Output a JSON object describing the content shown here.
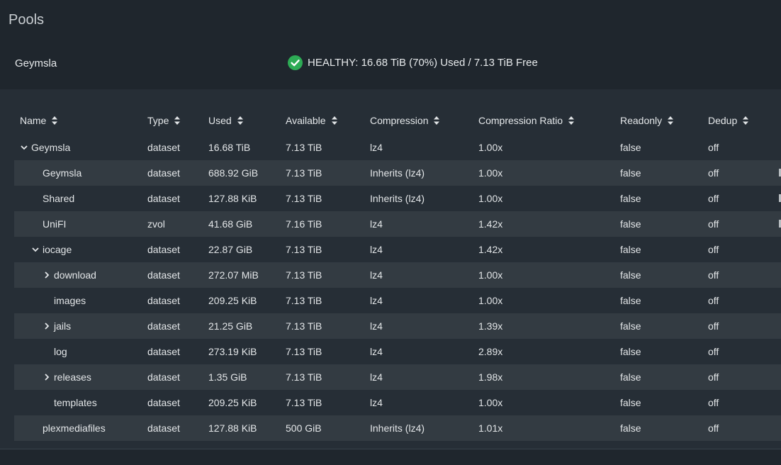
{
  "page": {
    "title": "Pools"
  },
  "pool": {
    "name": "Geymsla",
    "status": "HEALTHY: 16.68 TiB (70%) Used / 7.13 TiB Free",
    "status_icon": "check-circle-icon",
    "status_color": "#2dab55"
  },
  "table": {
    "columns": [
      "Name",
      "Type",
      "Used",
      "Available",
      "Compression",
      "Compression Ratio",
      "Readonly",
      "Dedup"
    ],
    "rows": [
      {
        "name": "Geymsla",
        "type": "dataset",
        "used": "16.68 TiB",
        "available": "7.13 TiB",
        "compression": "lz4",
        "ratio": "1.00x",
        "readonly": "false",
        "dedup": "off",
        "expander": "expanded",
        "level": 0
      },
      {
        "name": "Geymsla",
        "type": "dataset",
        "used": "688.92 GiB",
        "available": "7.13 TiB",
        "compression": "Inherits (lz4)",
        "ratio": "1.00x",
        "readonly": "false",
        "dedup": "off",
        "expander": "none",
        "level": 1
      },
      {
        "name": "Shared",
        "type": "dataset",
        "used": "127.88 KiB",
        "available": "7.13 TiB",
        "compression": "Inherits (lz4)",
        "ratio": "1.00x",
        "readonly": "false",
        "dedup": "off",
        "expander": "none",
        "level": 1
      },
      {
        "name": "UniFI",
        "type": "zvol",
        "used": "41.68 GiB",
        "available": "7.16 TiB",
        "compression": "lz4",
        "ratio": "1.42x",
        "readonly": "false",
        "dedup": "off",
        "expander": "none",
        "level": 1
      },
      {
        "name": "iocage",
        "type": "dataset",
        "used": "22.87 GiB",
        "available": "7.13 TiB",
        "compression": "lz4",
        "ratio": "1.42x",
        "readonly": "false",
        "dedup": "off",
        "expander": "expanded",
        "level": 1
      },
      {
        "name": "download",
        "type": "dataset",
        "used": "272.07 MiB",
        "available": "7.13 TiB",
        "compression": "lz4",
        "ratio": "1.00x",
        "readonly": "false",
        "dedup": "off",
        "expander": "collapsed",
        "level": 2
      },
      {
        "name": "images",
        "type": "dataset",
        "used": "209.25 KiB",
        "available": "7.13 TiB",
        "compression": "lz4",
        "ratio": "1.00x",
        "readonly": "false",
        "dedup": "off",
        "expander": "none",
        "level": 2
      },
      {
        "name": "jails",
        "type": "dataset",
        "used": "21.25 GiB",
        "available": "7.13 TiB",
        "compression": "lz4",
        "ratio": "1.39x",
        "readonly": "false",
        "dedup": "off",
        "expander": "collapsed",
        "level": 2
      },
      {
        "name": "log",
        "type": "dataset",
        "used": "273.19 KiB",
        "available": "7.13 TiB",
        "compression": "lz4",
        "ratio": "2.89x",
        "readonly": "false",
        "dedup": "off",
        "expander": "none",
        "level": 2
      },
      {
        "name": "releases",
        "type": "dataset",
        "used": "1.35 GiB",
        "available": "7.13 TiB",
        "compression": "lz4",
        "ratio": "1.98x",
        "readonly": "false",
        "dedup": "off",
        "expander": "collapsed",
        "level": 2
      },
      {
        "name": "templates",
        "type": "dataset",
        "used": "209.25 KiB",
        "available": "7.13 TiB",
        "compression": "lz4",
        "ratio": "1.00x",
        "readonly": "false",
        "dedup": "off",
        "expander": "none",
        "level": 2
      },
      {
        "name": "plexmediafiles",
        "type": "dataset",
        "used": "127.88 KiB",
        "available": "500 GiB",
        "compression": "Inherits (lz4)",
        "ratio": "1.01x",
        "readonly": "false",
        "dedup": "off",
        "expander": "none",
        "level": 1
      }
    ]
  }
}
